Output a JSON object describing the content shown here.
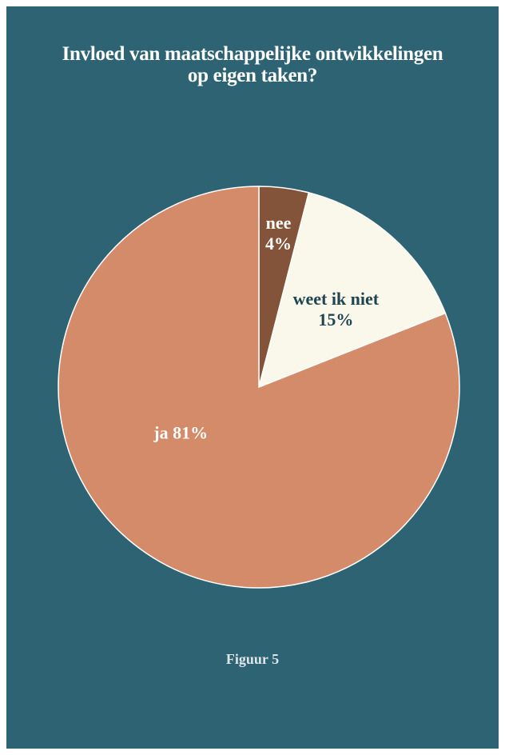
{
  "title": {
    "line1": "Invloed van maatschappelijke ontwikkelingen",
    "line2": "op eigen taken?"
  },
  "chart_data": {
    "type": "pie",
    "title": "Invloed van maatschappelijke ontwikkelingen op eigen taken?",
    "start": "top, clockwise",
    "slices": [
      {
        "label": "nee",
        "value": 4,
        "display": "4%",
        "color": "#83543a",
        "text_color": "#ffffff"
      },
      {
        "label": "weet ik niet",
        "value": 15,
        "display": "15%",
        "color": "#faf8ea",
        "text_color": "#1f4553"
      },
      {
        "label": "ja",
        "value": 81,
        "display": "81%",
        "color": "#d38b69",
        "text_color": "#ffffff"
      }
    ]
  },
  "footer": "Figuur 5",
  "colors": {
    "background": "#2e6373",
    "outline": "#ffffff"
  }
}
